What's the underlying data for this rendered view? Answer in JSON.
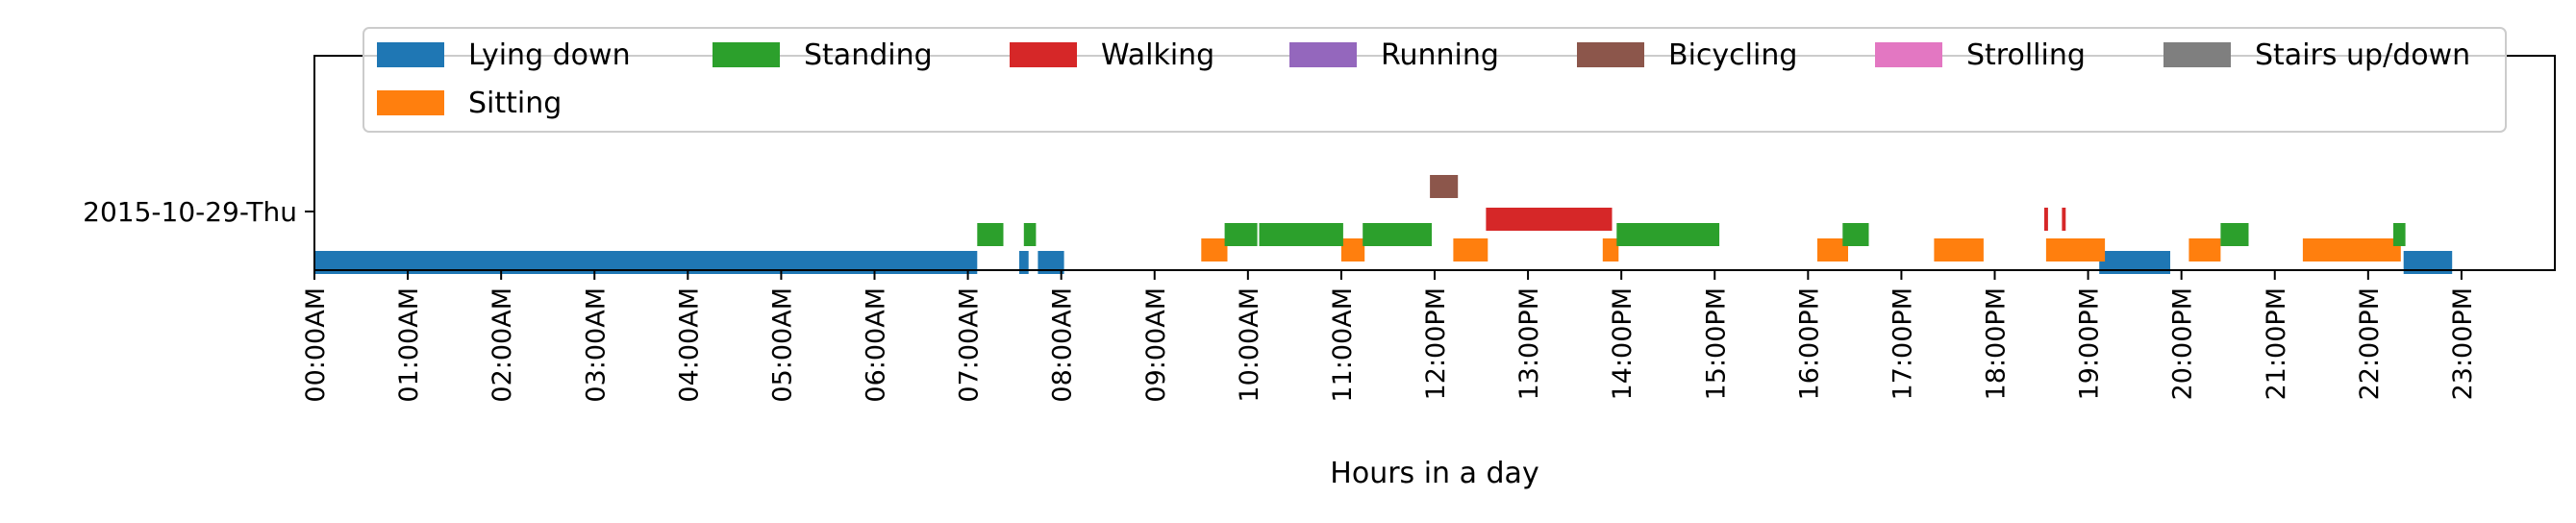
{
  "chart_data": {
    "type": "bar",
    "orientation": "horizontal-timeline",
    "title": "",
    "xlabel": "Hours in a day",
    "ylabel": "",
    "xlim": [
      0,
      24
    ],
    "grid": false,
    "legend_position": "top",
    "y_categories": [
      "2015-10-29-Thu"
    ],
    "x_tick_labels": [
      "00:00AM",
      "01:00AM",
      "02:00AM",
      "03:00AM",
      "04:00AM",
      "05:00AM",
      "06:00AM",
      "07:00AM",
      "08:00AM",
      "09:00AM",
      "10:00AM",
      "11:00AM",
      "12:00PM",
      "13:00PM",
      "14:00PM",
      "15:00PM",
      "16:00PM",
      "17:00PM",
      "18:00PM",
      "19:00PM",
      "20:00PM",
      "21:00PM",
      "22:00PM",
      "23:00PM"
    ],
    "x_tick_values": [
      0,
      1,
      2,
      3,
      4,
      5,
      6,
      7,
      8,
      9,
      10,
      11,
      12,
      13,
      14,
      15,
      16,
      17,
      18,
      19,
      20,
      21,
      22,
      23
    ],
    "series": [
      {
        "name": "Lying down",
        "color": "#1f77b4",
        "segments": [
          [
            0.0,
            7.1
          ],
          [
            7.55,
            7.65
          ],
          [
            7.75,
            8.03
          ],
          [
            19.12,
            19.88
          ],
          [
            22.38,
            22.9
          ]
        ]
      },
      {
        "name": "Sitting",
        "color": "#ff7f0e",
        "segments": [
          [
            9.5,
            9.78
          ],
          [
            11.0,
            11.25
          ],
          [
            12.2,
            12.57
          ],
          [
            13.8,
            13.97
          ],
          [
            16.1,
            16.43
          ],
          [
            17.35,
            17.88
          ],
          [
            18.55,
            19.18
          ],
          [
            20.08,
            20.42
          ],
          [
            21.3,
            22.35
          ]
        ]
      },
      {
        "name": "Standing",
        "color": "#2ca02c",
        "segments": [
          [
            7.1,
            7.38
          ],
          [
            7.6,
            7.73
          ],
          [
            9.75,
            10.1
          ],
          [
            10.12,
            11.02
          ],
          [
            11.23,
            11.97
          ],
          [
            13.95,
            15.05
          ],
          [
            16.37,
            16.65
          ],
          [
            20.42,
            20.72
          ],
          [
            22.27,
            22.4
          ]
        ]
      },
      {
        "name": "Walking",
        "color": "#d62728",
        "segments": [
          [
            12.55,
            13.9
          ],
          [
            18.53,
            18.57
          ],
          [
            18.72,
            18.76
          ]
        ]
      },
      {
        "name": "Running",
        "color": "#9467bd",
        "segments": []
      },
      {
        "name": "Bicycling",
        "color": "#8c564b",
        "segments": [
          [
            11.95,
            12.25
          ]
        ]
      },
      {
        "name": "Strolling",
        "color": "#e377c2",
        "segments": []
      },
      {
        "name": "Stairs up/down",
        "color": "#7f7f7f",
        "segments": []
      }
    ]
  }
}
